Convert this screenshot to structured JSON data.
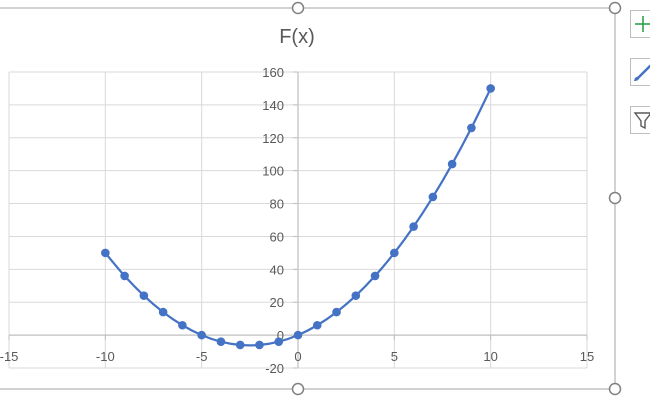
{
  "chart_data": {
    "type": "scatter",
    "title": "F(x)",
    "xlabel": "",
    "ylabel": "",
    "xlim": [
      -15,
      15
    ],
    "ylim": [
      -20,
      160
    ],
    "x_ticks": [
      -15,
      -10,
      -5,
      0,
      5,
      10,
      15
    ],
    "y_ticks": [
      -20,
      0,
      20,
      40,
      60,
      80,
      100,
      120,
      140,
      160
    ],
    "x_tick_labels": [
      "-15",
      "-10",
      "-5",
      "0",
      "5",
      "10",
      "15"
    ],
    "y_tick_labels": [
      "-20",
      "0",
      "20",
      "40",
      "60",
      "80",
      "100",
      "120",
      "140",
      "160"
    ],
    "grid": true,
    "smooth_line": true,
    "series": [
      {
        "x": [
          -10,
          -9,
          -8,
          -7,
          -6,
          -5,
          -4,
          -3,
          -2,
          -1,
          0,
          1,
          2,
          3,
          4,
          5,
          6,
          7,
          8,
          9,
          10
        ],
        "y": [
          50,
          36,
          24,
          14,
          6,
          0,
          -4,
          -6,
          -6,
          -4,
          0,
          6,
          14,
          24,
          36,
          50,
          66,
          84,
          104,
          126,
          150
        ],
        "color": "#4472c4"
      }
    ]
  },
  "toolbar": {
    "icons": [
      "chart-elements-icon",
      "chart-styles-icon",
      "chart-filters-icon"
    ]
  },
  "colors": {
    "series": "#4472c4",
    "grid": "#d9d9d9",
    "axis": "#bfbfbf",
    "text": "#595959",
    "frame": "#a6a6a6",
    "add": "#2e9e4f"
  }
}
